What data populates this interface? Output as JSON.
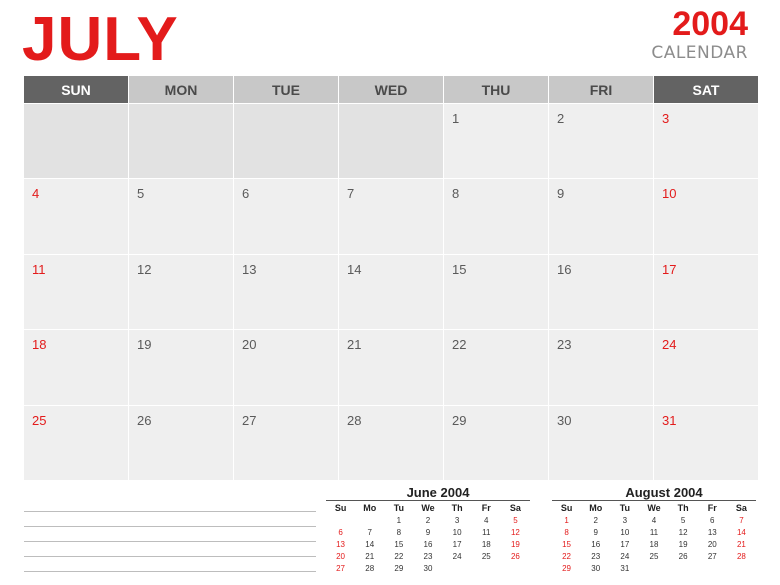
{
  "header": {
    "month": "JULY",
    "year": "2004",
    "subtitle": "CALENDAR"
  },
  "colors": {
    "accent_red": "#e31b1b",
    "header_gray": "#c8c8c8",
    "weekend_header": "#636363",
    "cell_bg": "#efefef",
    "empty_cell_bg": "#e2e2e2",
    "subtitle_gray": "#8c8c8c"
  },
  "calendar": {
    "weekdays": [
      "SUN",
      "MON",
      "TUE",
      "WED",
      "THU",
      "FRI",
      "SAT"
    ],
    "weeks": [
      [
        "",
        "",
        "",
        "",
        "1",
        "2",
        "3"
      ],
      [
        "4",
        "5",
        "6",
        "7",
        "8",
        "9",
        "10"
      ],
      [
        "11",
        "12",
        "13",
        "14",
        "15",
        "16",
        "17"
      ],
      [
        "18",
        "19",
        "20",
        "21",
        "22",
        "23",
        "24"
      ],
      [
        "25",
        "26",
        "27",
        "28",
        "29",
        "30",
        "31"
      ]
    ]
  },
  "notes": {
    "line_count": 5
  },
  "mini_calendars": [
    {
      "title": "June 2004",
      "weekdays": [
        "Su",
        "Mo",
        "Tu",
        "We",
        "Th",
        "Fr",
        "Sa"
      ],
      "weeks": [
        [
          "",
          "",
          "1",
          "2",
          "3",
          "4",
          "5"
        ],
        [
          "6",
          "7",
          "8",
          "9",
          "10",
          "11",
          "12"
        ],
        [
          "13",
          "14",
          "15",
          "16",
          "17",
          "18",
          "19"
        ],
        [
          "20",
          "21",
          "22",
          "23",
          "24",
          "25",
          "26"
        ],
        [
          "27",
          "28",
          "29",
          "30",
          "",
          "",
          ""
        ]
      ]
    },
    {
      "title": "August 2004",
      "weekdays": [
        "Su",
        "Mo",
        "Tu",
        "We",
        "Th",
        "Fr",
        "Sa"
      ],
      "weeks": [
        [
          "1",
          "2",
          "3",
          "4",
          "5",
          "6",
          "7"
        ],
        [
          "8",
          "9",
          "10",
          "11",
          "12",
          "13",
          "14"
        ],
        [
          "15",
          "16",
          "17",
          "18",
          "19",
          "20",
          "21"
        ],
        [
          "22",
          "23",
          "24",
          "25",
          "26",
          "27",
          "28"
        ],
        [
          "29",
          "30",
          "31",
          "",
          "",
          "",
          ""
        ]
      ]
    }
  ]
}
